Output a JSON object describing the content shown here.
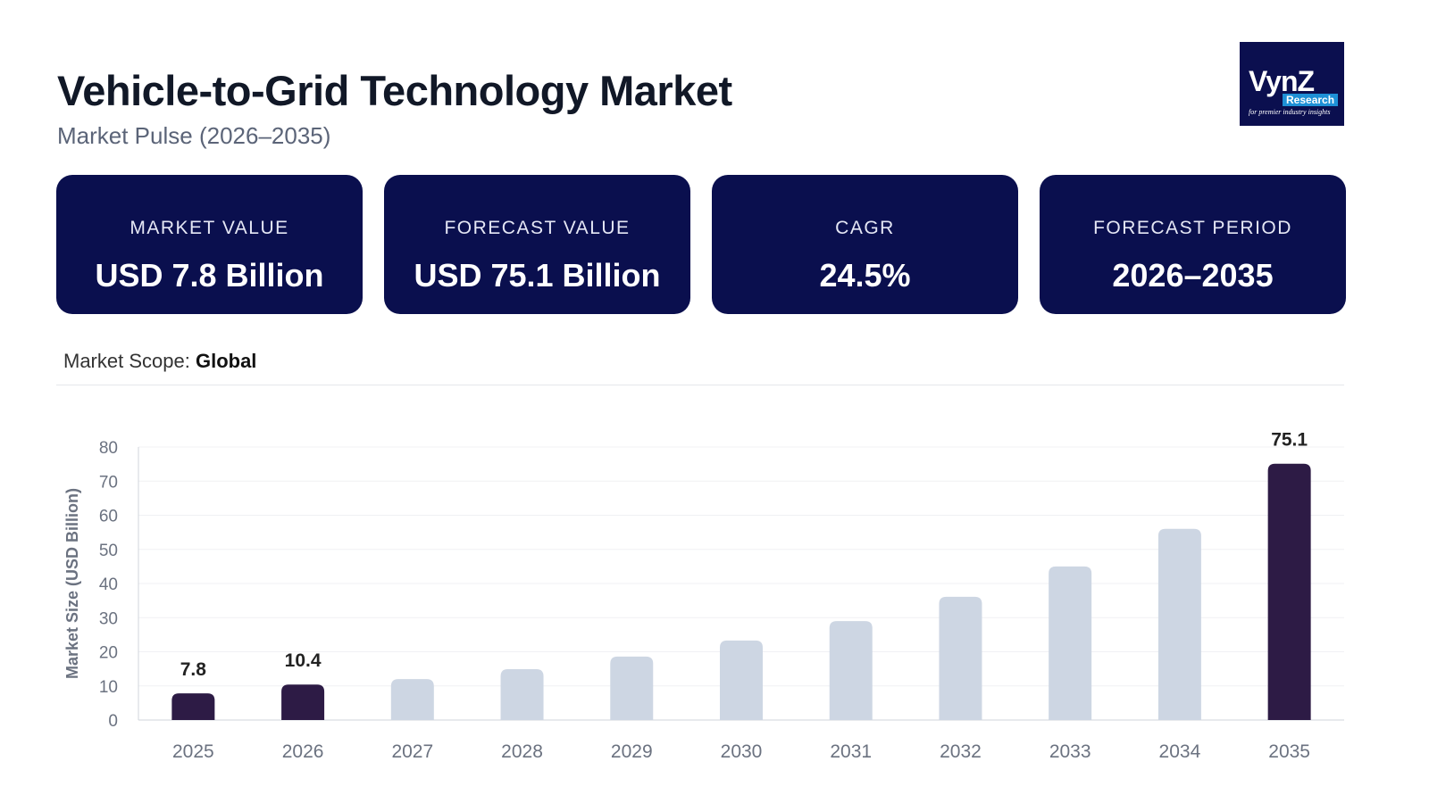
{
  "header": {
    "title": "Vehicle-to-Grid Technology Market",
    "subtitle": "Market Pulse (2026–2035)"
  },
  "logo": {
    "text": "VynZ",
    "badge": "Research",
    "tagline": "for premier industry insights"
  },
  "cards": [
    {
      "label": "MARKET VALUE",
      "value": "USD 7.8 Billion"
    },
    {
      "label": "FORECAST VALUE",
      "value": "USD 75.1 Billion"
    },
    {
      "label": "CAGR",
      "value": "24.5%"
    },
    {
      "label": "FORECAST PERIOD",
      "value": "2026–2035"
    }
  ],
  "scope": {
    "label": "Market Scope:",
    "value": "Global"
  },
  "colors": {
    "highlight": "#2d1b45",
    "normal": "#cdd6e3",
    "card": "#0a0f4e"
  },
  "chart_data": {
    "type": "bar",
    "ylabel": "Market Size (USD Billion)",
    "ylim": [
      0,
      80
    ],
    "yticks": [
      0,
      10,
      20,
      30,
      40,
      50,
      60,
      70,
      80
    ],
    "grid": true,
    "categories": [
      "2025",
      "2026",
      "2027",
      "2028",
      "2029",
      "2030",
      "2031",
      "2032",
      "2033",
      "2034",
      "2035"
    ],
    "values": [
      7.8,
      10.4,
      12.0,
      14.9,
      18.6,
      23.3,
      29.0,
      36.1,
      45.0,
      56.0,
      75.1
    ],
    "highlighted": [
      "2025",
      "2026",
      "2035"
    ],
    "data_labels": {
      "2025": "7.8",
      "2026": "10.4",
      "2035": "75.1"
    }
  }
}
